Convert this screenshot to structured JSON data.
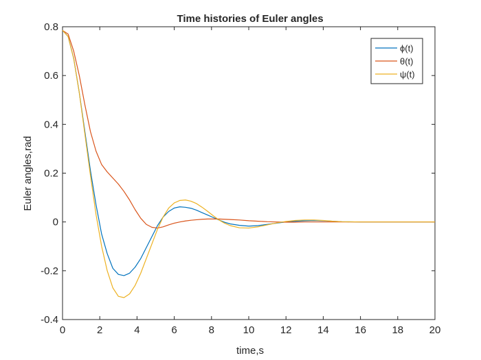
{
  "chart_data": {
    "type": "line",
    "title": "Time histories of Euler angles",
    "xlabel": "time,s",
    "ylabel": "Euler angles,rad",
    "xlim": [
      0,
      20
    ],
    "ylim": [
      -0.4,
      0.8
    ],
    "xticks": [
      0,
      2,
      4,
      6,
      8,
      10,
      12,
      14,
      16,
      18,
      20
    ],
    "yticks": [
      -0.4,
      -0.2,
      0,
      0.2,
      0.4,
      0.6,
      0.8
    ],
    "xtick_labels": [
      "0",
      "2",
      "4",
      "6",
      "8",
      "10",
      "12",
      "14",
      "16",
      "18",
      "20"
    ],
    "ytick_labels": [
      "-0.4",
      "-0.2",
      "0",
      "0.2",
      "0.4",
      "0.6",
      "0.8"
    ],
    "grid": false,
    "legend_position": "top-right",
    "series": [
      {
        "name": "ϕ(t)",
        "color": "#0072BD",
        "x": [
          0,
          0.3,
          0.6,
          0.9,
          1.2,
          1.5,
          1.8,
          2.1,
          2.4,
          2.7,
          3.0,
          3.3,
          3.6,
          3.9,
          4.2,
          4.5,
          4.8,
          5.1,
          5.4,
          5.7,
          6.0,
          6.3,
          6.6,
          6.9,
          7.2,
          7.5,
          7.8,
          8.1,
          8.4,
          8.7,
          9.0,
          9.5,
          10.0,
          10.5,
          11.0,
          11.5,
          12.0,
          12.5,
          13.0,
          13.5,
          14.0,
          14.5,
          15.0,
          16.0,
          17.0,
          18.0,
          19.0,
          20.0
        ],
        "y": [
          0.785,
          0.76,
          0.67,
          0.53,
          0.37,
          0.21,
          0.07,
          -0.05,
          -0.13,
          -0.19,
          -0.215,
          -0.22,
          -0.21,
          -0.185,
          -0.15,
          -0.105,
          -0.06,
          -0.015,
          0.02,
          0.043,
          0.057,
          0.062,
          0.06,
          0.056,
          0.048,
          0.038,
          0.028,
          0.018,
          0.008,
          -0.001,
          -0.008,
          -0.014,
          -0.017,
          -0.015,
          -0.01,
          -0.005,
          0.0,
          0.003,
          0.005,
          0.006,
          0.005,
          0.003,
          0.001,
          0.0,
          0.0,
          0.0,
          0.0,
          0.0
        ]
      },
      {
        "name": "θ(t)",
        "color": "#D95319",
        "x": [
          0,
          0.3,
          0.6,
          0.9,
          1.2,
          1.5,
          1.8,
          2.1,
          2.4,
          2.7,
          3.0,
          3.3,
          3.6,
          3.9,
          4.2,
          4.5,
          4.8,
          5.1,
          5.4,
          5.7,
          6.0,
          6.3,
          6.6,
          6.9,
          7.2,
          7.5,
          7.8,
          8.1,
          8.4,
          8.7,
          9.0,
          9.5,
          10.0,
          10.5,
          11.0,
          11.5,
          12.0,
          12.5,
          13.0,
          13.5,
          14.0,
          14.5,
          15.0,
          16.0,
          17.0,
          18.0,
          19.0,
          20.0
        ],
        "y": [
          0.785,
          0.77,
          0.7,
          0.6,
          0.48,
          0.37,
          0.29,
          0.235,
          0.205,
          0.18,
          0.155,
          0.125,
          0.09,
          0.05,
          0.015,
          -0.01,
          -0.022,
          -0.025,
          -0.02,
          -0.012,
          -0.005,
          0.0,
          0.004,
          0.007,
          0.009,
          0.011,
          0.012,
          0.012,
          0.012,
          0.011,
          0.01,
          0.008,
          0.005,
          0.003,
          0.001,
          0.0,
          -0.001,
          -0.001,
          0.0,
          0.0,
          0.0,
          0.0,
          0.0,
          0.0,
          0.0,
          0.0,
          0.0,
          0.0
        ]
      },
      {
        "name": "ψ(t)",
        "color": "#EDB120",
        "x": [
          0,
          0.3,
          0.6,
          0.9,
          1.2,
          1.5,
          1.8,
          2.1,
          2.4,
          2.7,
          3.0,
          3.3,
          3.6,
          3.9,
          4.2,
          4.5,
          4.8,
          5.1,
          5.4,
          5.7,
          6.0,
          6.3,
          6.6,
          6.9,
          7.2,
          7.5,
          7.8,
          8.1,
          8.4,
          8.7,
          9.0,
          9.5,
          10.0,
          10.5,
          11.0,
          11.5,
          12.0,
          12.5,
          13.0,
          13.5,
          14.0,
          14.5,
          15.0,
          16.0,
          17.0,
          18.0,
          19.0,
          20.0
        ],
        "y": [
          0.785,
          0.76,
          0.67,
          0.53,
          0.36,
          0.19,
          0.03,
          -0.1,
          -0.2,
          -0.27,
          -0.305,
          -0.31,
          -0.295,
          -0.26,
          -0.21,
          -0.15,
          -0.09,
          -0.03,
          0.02,
          0.057,
          0.078,
          0.088,
          0.09,
          0.085,
          0.075,
          0.06,
          0.043,
          0.025,
          0.008,
          -0.005,
          -0.015,
          -0.024,
          -0.025,
          -0.02,
          -0.012,
          -0.004,
          0.002,
          0.006,
          0.008,
          0.008,
          0.006,
          0.003,
          0.001,
          0.0,
          0.0,
          0.0,
          0.0,
          0.0
        ]
      }
    ]
  }
}
